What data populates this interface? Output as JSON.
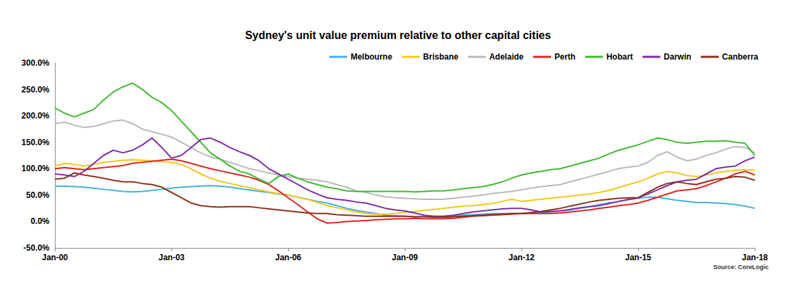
{
  "chart_data": {
    "type": "line",
    "title": "Sydney's unit value premium relative to other capital cities",
    "annotation": "Source: CoreLogic",
    "categories": [
      "Jan-00",
      null,
      null,
      null,
      null,
      null,
      null,
      null,
      null,
      null,
      null,
      null,
      "Jan-03",
      null,
      null,
      null,
      null,
      null,
      null,
      null,
      null,
      null,
      null,
      null,
      "Jan-06",
      null,
      null,
      null,
      null,
      null,
      null,
      null,
      null,
      null,
      null,
      null,
      "Jan-09",
      null,
      null,
      null,
      null,
      null,
      null,
      null,
      null,
      null,
      null,
      null,
      "Jan-12",
      null,
      null,
      null,
      null,
      null,
      null,
      null,
      null,
      null,
      null,
      null,
      "Jan-15",
      null,
      null,
      null,
      null,
      null,
      null,
      null,
      null,
      null,
      null,
      null,
      "Jan-18"
    ],
    "ylim": [
      -50,
      300
    ],
    "yticks": [
      {
        "value": -50,
        "label": "-50.0%"
      },
      {
        "value": 0,
        "label": "0.0%"
      },
      {
        "value": 50,
        "label": "50.0%"
      },
      {
        "value": 100,
        "label": "100.0%"
      },
      {
        "value": 150,
        "label": "150.0%"
      },
      {
        "value": 200,
        "label": "200.0%"
      },
      {
        "value": 250,
        "label": "250.0%"
      },
      {
        "value": 300,
        "label": "300.0%"
      }
    ],
    "grid": false,
    "legend": "top-right",
    "series": [
      {
        "name": "Melbourne",
        "color": "#3fb0e0",
        "values": [
          67,
          67,
          66,
          65,
          63,
          61,
          59,
          57,
          56,
          57,
          59,
          61,
          63,
          65,
          66,
          67,
          68,
          67,
          65,
          62,
          60,
          57,
          55,
          52,
          50,
          46,
          42,
          38,
          35,
          30,
          25,
          21,
          18,
          15,
          12,
          11,
          10,
          9,
          9,
          9,
          10,
          11,
          12,
          13,
          14,
          15,
          15,
          15,
          15,
          16,
          17,
          18,
          20,
          22,
          25,
          28,
          32,
          35,
          38,
          41,
          44,
          46,
          46,
          43,
          40,
          38,
          36,
          36,
          35,
          34,
          32,
          29,
          25
        ]
      },
      {
        "name": "Brisbane",
        "color": "#f5c518",
        "values": [
          105,
          110,
          108,
          105,
          108,
          112,
          114,
          116,
          117,
          116,
          115,
          113,
          112,
          108,
          100,
          90,
          82,
          76,
          72,
          68,
          64,
          60,
          56,
          53,
          50,
          46,
          42,
          36,
          30,
          26,
          22,
          18,
          15,
          14,
          14,
          15,
          17,
          19,
          21,
          23,
          25,
          27,
          29,
          30,
          32,
          34,
          38,
          42,
          38,
          40,
          42,
          44,
          46,
          48,
          50,
          52,
          55,
          59,
          64,
          70,
          75,
          82,
          90,
          95,
          92,
          87,
          85,
          88,
          92,
          95,
          97,
          98,
          97
        ]
      },
      {
        "name": "Adelaide",
        "color": "#b8b8b8",
        "values": [
          185,
          188,
          182,
          178,
          180,
          185,
          190,
          192,
          185,
          175,
          170,
          165,
          160,
          150,
          140,
          130,
          122,
          118,
          112,
          106,
          100,
          96,
          92,
          88,
          85,
          82,
          80,
          78,
          75,
          70,
          65,
          58,
          55,
          50,
          47,
          45,
          44,
          43,
          42,
          42,
          42,
          44,
          46,
          48,
          50,
          53,
          55,
          57,
          60,
          63,
          66,
          68,
          70,
          75,
          80,
          85,
          90,
          95,
          100,
          103,
          105,
          112,
          125,
          132,
          122,
          115,
          118,
          125,
          130,
          137,
          142,
          140,
          130
        ]
      },
      {
        "name": "Perth",
        "color": "#e0201b",
        "values": [
          100,
          102,
          100,
          98,
          100,
          102,
          104,
          106,
          110,
          112,
          114,
          116,
          118,
          115,
          110,
          105,
          100,
          96,
          92,
          88,
          84,
          78,
          70,
          58,
          45,
          32,
          18,
          5,
          -3,
          -2,
          0,
          1,
          2,
          3,
          4,
          5,
          5,
          6,
          5,
          5,
          5,
          6,
          8,
          10,
          11,
          12,
          13,
          14,
          15,
          15,
          15,
          15,
          16,
          18,
          20,
          22,
          25,
          27,
          30,
          32,
          35,
          40,
          46,
          52,
          58,
          60,
          62,
          68,
          75,
          82,
          90,
          95,
          88
        ]
      },
      {
        "name": "Hobart",
        "color": "#3dbb2d",
        "values": [
          215,
          205,
          198,
          205,
          212,
          230,
          245,
          255,
          262,
          250,
          235,
          225,
          210,
          190,
          170,
          150,
          130,
          118,
          105,
          95,
          90,
          80,
          72,
          85,
          90,
          82,
          75,
          70,
          65,
          62,
          58,
          57,
          57,
          57,
          57,
          57,
          57,
          56,
          57,
          58,
          58,
          60,
          62,
          64,
          66,
          70,
          75,
          82,
          88,
          92,
          95,
          98,
          100,
          105,
          110,
          115,
          120,
          128,
          135,
          140,
          145,
          152,
          158,
          155,
          150,
          148,
          150,
          152,
          152,
          153,
          150,
          148,
          125
        ]
      },
      {
        "name": "Darwin",
        "color": "#7d2aa8",
        "values": [
          90,
          88,
          85,
          95,
          110,
          125,
          135,
          130,
          135,
          145,
          158,
          140,
          120,
          125,
          140,
          155,
          158,
          150,
          140,
          132,
          125,
          115,
          100,
          90,
          80,
          70,
          60,
          52,
          45,
          42,
          40,
          37,
          35,
          30,
          25,
          22,
          20,
          16,
          12,
          10,
          10,
          12,
          15,
          18,
          20,
          22,
          24,
          25,
          25,
          22,
          18,
          19,
          20,
          23,
          26,
          28,
          30,
          34,
          38,
          42,
          45,
          52,
          60,
          68,
          75,
          78,
          80,
          90,
          100,
          103,
          105,
          115,
          122
        ]
      },
      {
        "name": "Canberra",
        "color": "#8b2f1a",
        "values": [
          80,
          82,
          92,
          88,
          85,
          82,
          78,
          75,
          75,
          72,
          70,
          65,
          55,
          45,
          35,
          30,
          28,
          27,
          28,
          28,
          28,
          26,
          24,
          22,
          20,
          18,
          16,
          15,
          15,
          13,
          12,
          11,
          10,
          10,
          10,
          10,
          10,
          9,
          9,
          8,
          8,
          9,
          10,
          11,
          12,
          13,
          14,
          15,
          15,
          17,
          19,
          22,
          25,
          29,
          33,
          37,
          40,
          42,
          44,
          45,
          45,
          55,
          65,
          72,
          75,
          72,
          70,
          75,
          80,
          82,
          85,
          84,
          78
        ]
      }
    ]
  }
}
